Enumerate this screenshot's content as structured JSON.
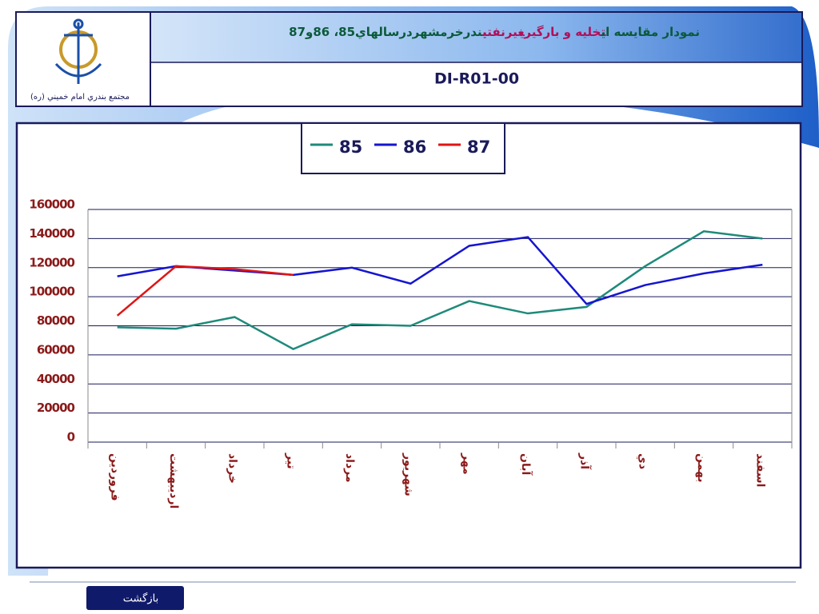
{
  "header": {
    "logo_caption": "مجتمع بندري امام خميني (ره)",
    "title_parts": [
      {
        "text": "نمودار مقايسه اي",
        "color": "#0b5a3a"
      },
      {
        "text": "تخليه و بارگيري",
        "color": "#b0105a"
      },
      {
        "text": "غيرنفتي",
        "color": "#b0105a"
      },
      {
        "text": "بندرخرمشهردرسالهاي85، 86و87",
        "color": "#0b5a3a"
      }
    ],
    "code": "DI-R01-00"
  },
  "chart_data": {
    "type": "line",
    "categories": [
      "فروردين",
      "ارديبهشت",
      "خرداد",
      "تير",
      "مرداد",
      "شهريور",
      "مهر",
      "آبان",
      "آذر",
      "دي",
      "بهمن",
      "اسفند"
    ],
    "series": [
      {
        "name": "85",
        "color": "#1e8a7a",
        "values": [
          79000,
          78000,
          86000,
          64000,
          81000,
          80000,
          97000,
          88500,
          93000,
          121000,
          145000,
          140000
        ]
      },
      {
        "name": "86",
        "color": "#1515d0",
        "values": [
          114000,
          121000,
          118000,
          115000,
          120000,
          109000,
          135000,
          141000,
          95000,
          108000,
          116000,
          122000
        ]
      },
      {
        "name": "87",
        "color": "#e01515",
        "values": [
          87000,
          121000,
          119000,
          115000,
          null,
          null,
          null,
          null,
          null,
          null,
          null,
          null
        ]
      }
    ],
    "ylim": [
      0,
      160000
    ],
    "yticks": [
      0,
      20000,
      40000,
      60000,
      80000,
      100000,
      120000,
      140000,
      160000
    ],
    "grid": true,
    "legend": "top"
  },
  "back_button": "بازگشت"
}
